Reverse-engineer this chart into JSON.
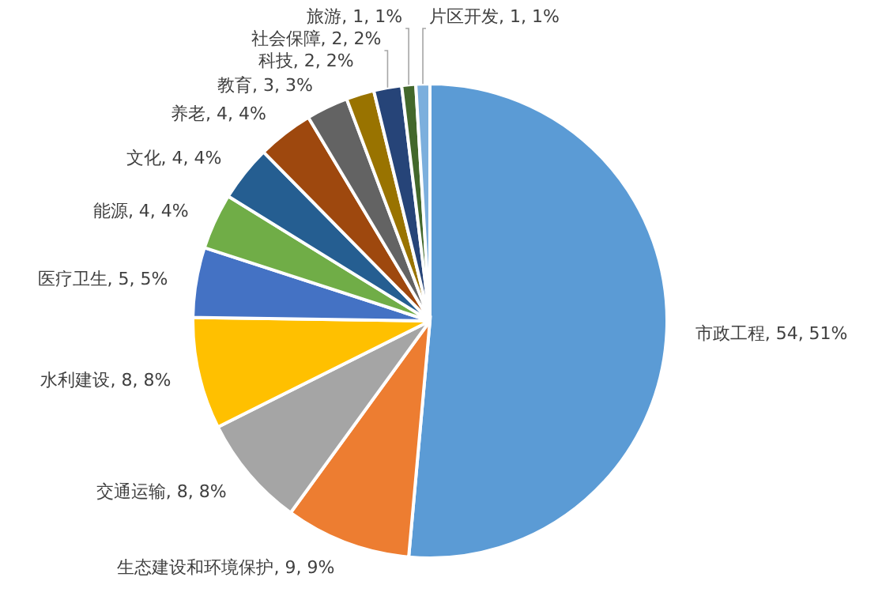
{
  "chart_data": {
    "type": "pie",
    "categories": [
      "市政工程",
      "生态建设和环境保护",
      "交通运输",
      "水利建设",
      "医疗卫生",
      "能源",
      "文化",
      "养老",
      "教育",
      "科技",
      "社会保障",
      "旅游",
      "片区开发"
    ],
    "values": [
      54,
      9,
      8,
      8,
      5,
      4,
      4,
      4,
      3,
      2,
      2,
      1,
      1
    ],
    "colors": [
      "#5b9bd5",
      "#ed7d31",
      "#a5a5a5",
      "#ffc000",
      "#4472c4",
      "#70ad47",
      "#255e91",
      "#9e480e",
      "#636363",
      "#997300",
      "#264478",
      "#43682b",
      "#7cafdd"
    ],
    "value_labels": [
      "54, 51%",
      "9, 9%",
      "8, 8%",
      "8, 8%",
      "5, 5%",
      "4, 4%",
      "4, 4%",
      "4, 4%",
      "3, 3%",
      "2, 2%",
      "2, 2%",
      "1, 1%",
      "1, 1%"
    ]
  }
}
